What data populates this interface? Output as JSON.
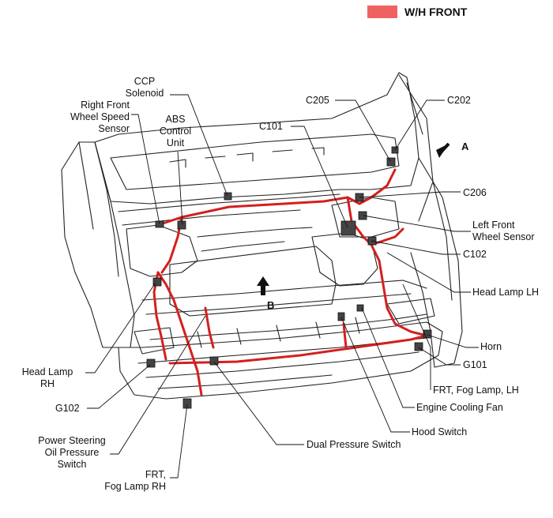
{
  "legend": {
    "label": "W/H FRONT",
    "color": "#f06262"
  },
  "harness_color": "#d41f1f",
  "views": {
    "a": "A",
    "b": "B"
  },
  "labels": {
    "ccp_solenoid": "CCP\nSolenoid",
    "right_front_wheel_speed_sensor": "Right Front\nWheel Speed\nSensor",
    "abs_control_unit": "ABS\nControl\nUnit",
    "c205": "C205",
    "c202": "C202",
    "c101": "C101",
    "c206": "C206",
    "left_front_wheel_sensor": "Left Front\nWheel Sensor",
    "c102": "C102",
    "head_lamp_lh": "Head Lamp LH",
    "horn": "Horn",
    "g101": "G101",
    "frt_fog_lamp_lh": "FRT, Fog Lamp, LH",
    "engine_cooling_fan": "Engine Cooling Fan",
    "hood_switch": "Hood Switch",
    "dual_pressure_switch": "Dual Pressure Switch",
    "head_lamp_rh": "Head Lamp\nRH",
    "g102": "G102",
    "power_steering_oil_pressure_switch": "Power Steering\nOil Pressure\nSwitch",
    "frt_fog_lamp_rh": "FRT,\nFog Lamp RH"
  }
}
